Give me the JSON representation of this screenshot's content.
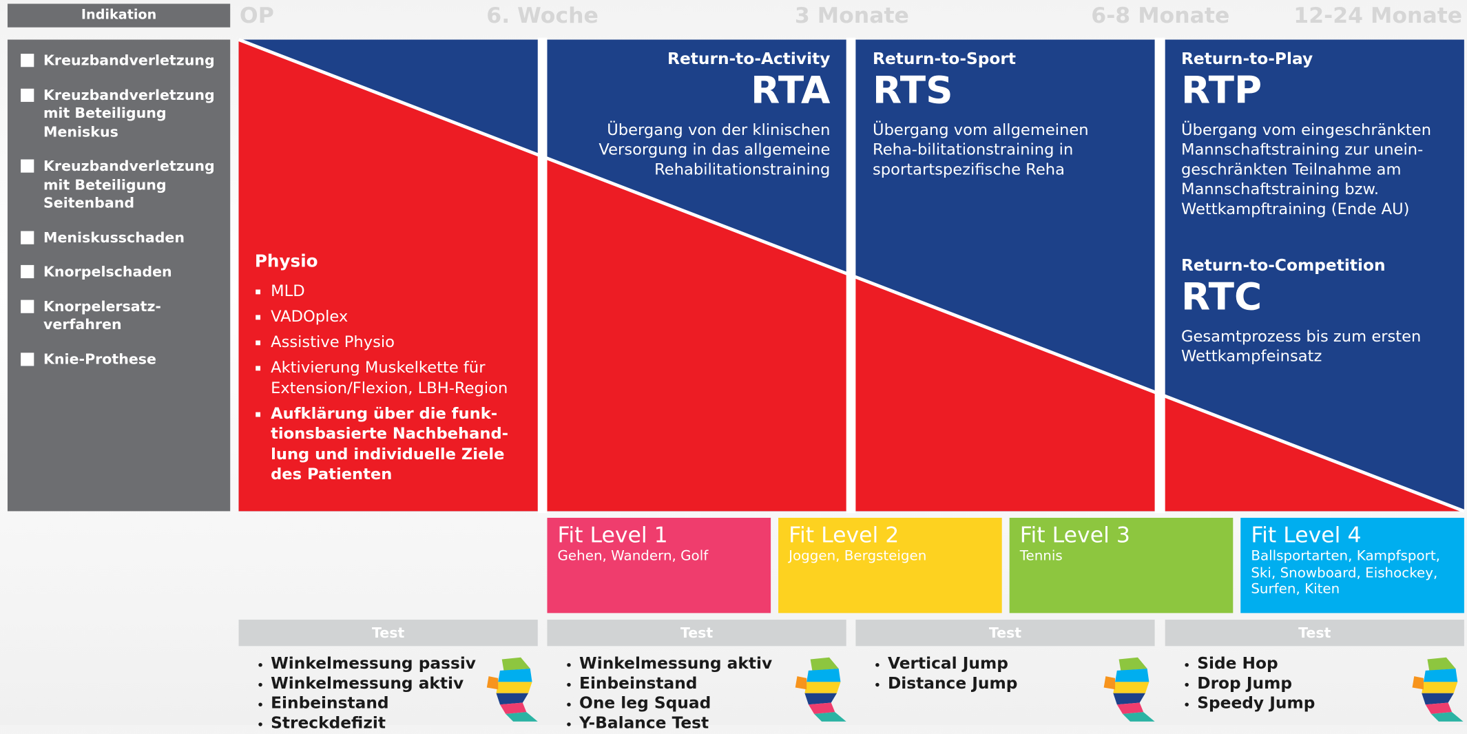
{
  "indication": {
    "header": "Indikation",
    "items": [
      [
        "Kreuzbandverletzung"
      ],
      [
        "Kreuzbandverletzung",
        "mit Beteiligung",
        "Meniskus"
      ],
      [
        "Kreuzbandverletzung",
        "mit Beteiligung",
        "Seitenband"
      ],
      [
        "Meniskusschaden"
      ],
      [
        "Knorpelschaden"
      ],
      [
        "Knorpelersatz-",
        "verfahren"
      ],
      [
        "Knie-Prothese"
      ]
    ]
  },
  "timeline": [
    "OP",
    "6. Woche",
    "3 Monate",
    "6-8 Monate",
    "12-24 Monate"
  ],
  "physio": {
    "title": "Physio",
    "items": [
      [
        "MLD"
      ],
      [
        "VADOplex"
      ],
      [
        "Assistive Physio"
      ],
      [
        "Aktivierung Muskelkette für",
        "Extension/Flexion, LBH-Region"
      ]
    ],
    "bold_item": [
      "Aufklärung über die funk-",
      "tionsbasierte Nachbehand-",
      "lung und individuelle Ziele",
      "des Patienten"
    ]
  },
  "phases": [
    {
      "subtitle": "Return-to-Activity",
      "abbr": "RTA",
      "lines": [
        "Übergang von der klinischen",
        "Versorgung in das allgemeine",
        "Rehabilitationstraining"
      ]
    },
    {
      "subtitle": "Return-to-Sport",
      "abbr": "RTS",
      "lines": [
        "Übergang vom allgemeinen",
        "Reha-bilitationstraining in",
        "sportartspezifische Reha"
      ]
    },
    {
      "subtitle": "Return-to-Play",
      "abbr": "RTP",
      "lines": [
        "Übergang vom eingeschränkten",
        "Mannschaftstraining zur unein-",
        "geschränkten Teilnahme am",
        "Mannschaftstraining bzw.",
        "Wettkampftraining (Ende AU)"
      ]
    },
    {
      "subtitle": "Return-to-Competition",
      "abbr": "RTC",
      "lines": [
        "Gesamtprozess bis zum ersten",
        "Wettkampfeinsatz"
      ]
    }
  ],
  "fit_levels": [
    {
      "title": "Fit Level 1",
      "lines": [
        "Gehen, Wandern, Golf"
      ]
    },
    {
      "title": "Fit Level 2",
      "lines": [
        "Joggen, Bergsteigen"
      ]
    },
    {
      "title": "Fit Level 3",
      "lines": [
        "Tennis"
      ]
    },
    {
      "title": "Fit Level 4",
      "lines": [
        "Ballsportarten, Kampfsport,",
        "Ski, Snowboard, Eishockey,",
        "Surfen, Kiten"
      ]
    }
  ],
  "tests": [
    {
      "header": "Test",
      "items": [
        "Winkelmessung passiv",
        "Winkelmessung aktiv",
        "Einbeinstand",
        "Streckdefizit"
      ]
    },
    {
      "header": "Test",
      "items": [
        "Winkelmessung aktiv",
        "Einbeinstand",
        "One leg Squad",
        "Y-Balance Test"
      ]
    },
    {
      "header": "Test",
      "items": [
        "Vertical Jump",
        "Distance Jump"
      ]
    },
    {
      "header": "Test",
      "items": [
        "Side Hop",
        "Drop Jump",
        "Speedy Jump"
      ]
    }
  ]
}
